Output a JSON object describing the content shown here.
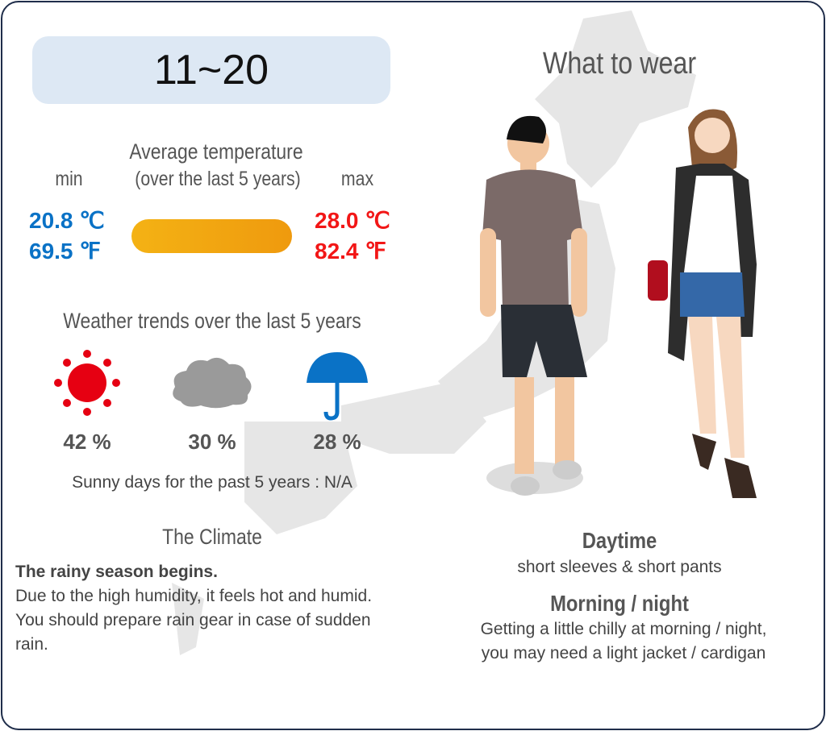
{
  "header": {
    "period": "11~20",
    "wear_title": "What to wear"
  },
  "temperature": {
    "title_line1": "Average temperature",
    "title_line2": "(over the last 5 years)",
    "min_label": "min",
    "max_label": "max",
    "min_c": "20.8 ℃",
    "min_f": "69.5 ℉",
    "max_c": "28.0 ℃",
    "max_f": "82.4 ℉",
    "colors": {
      "min": "#0a72c6",
      "max": "#f21616",
      "bar": "#f4b214"
    }
  },
  "trends": {
    "title": "Weather trends over the last 5 years",
    "items": [
      {
        "icon": "sun-icon",
        "value": "42 %"
      },
      {
        "icon": "cloud-icon",
        "value": "30 %"
      },
      {
        "icon": "umbrella-icon",
        "value": "28 %"
      }
    ],
    "sunny_days": "Sunny days for the past 5 years : N/A"
  },
  "climate": {
    "title": "The Climate",
    "headline": "The rainy season begins.",
    "text": "Due to the high humidity, it feels hot and humid. You should prepare rain gear in case of sudden rain."
  },
  "wear": {
    "daytime_title": "Daytime",
    "daytime_text": "short sleeves & short pants",
    "night_title": "Morning / night",
    "night_line1": "Getting a little chilly at morning / night,",
    "night_line2": "you may need a light jacket / cardigan"
  }
}
